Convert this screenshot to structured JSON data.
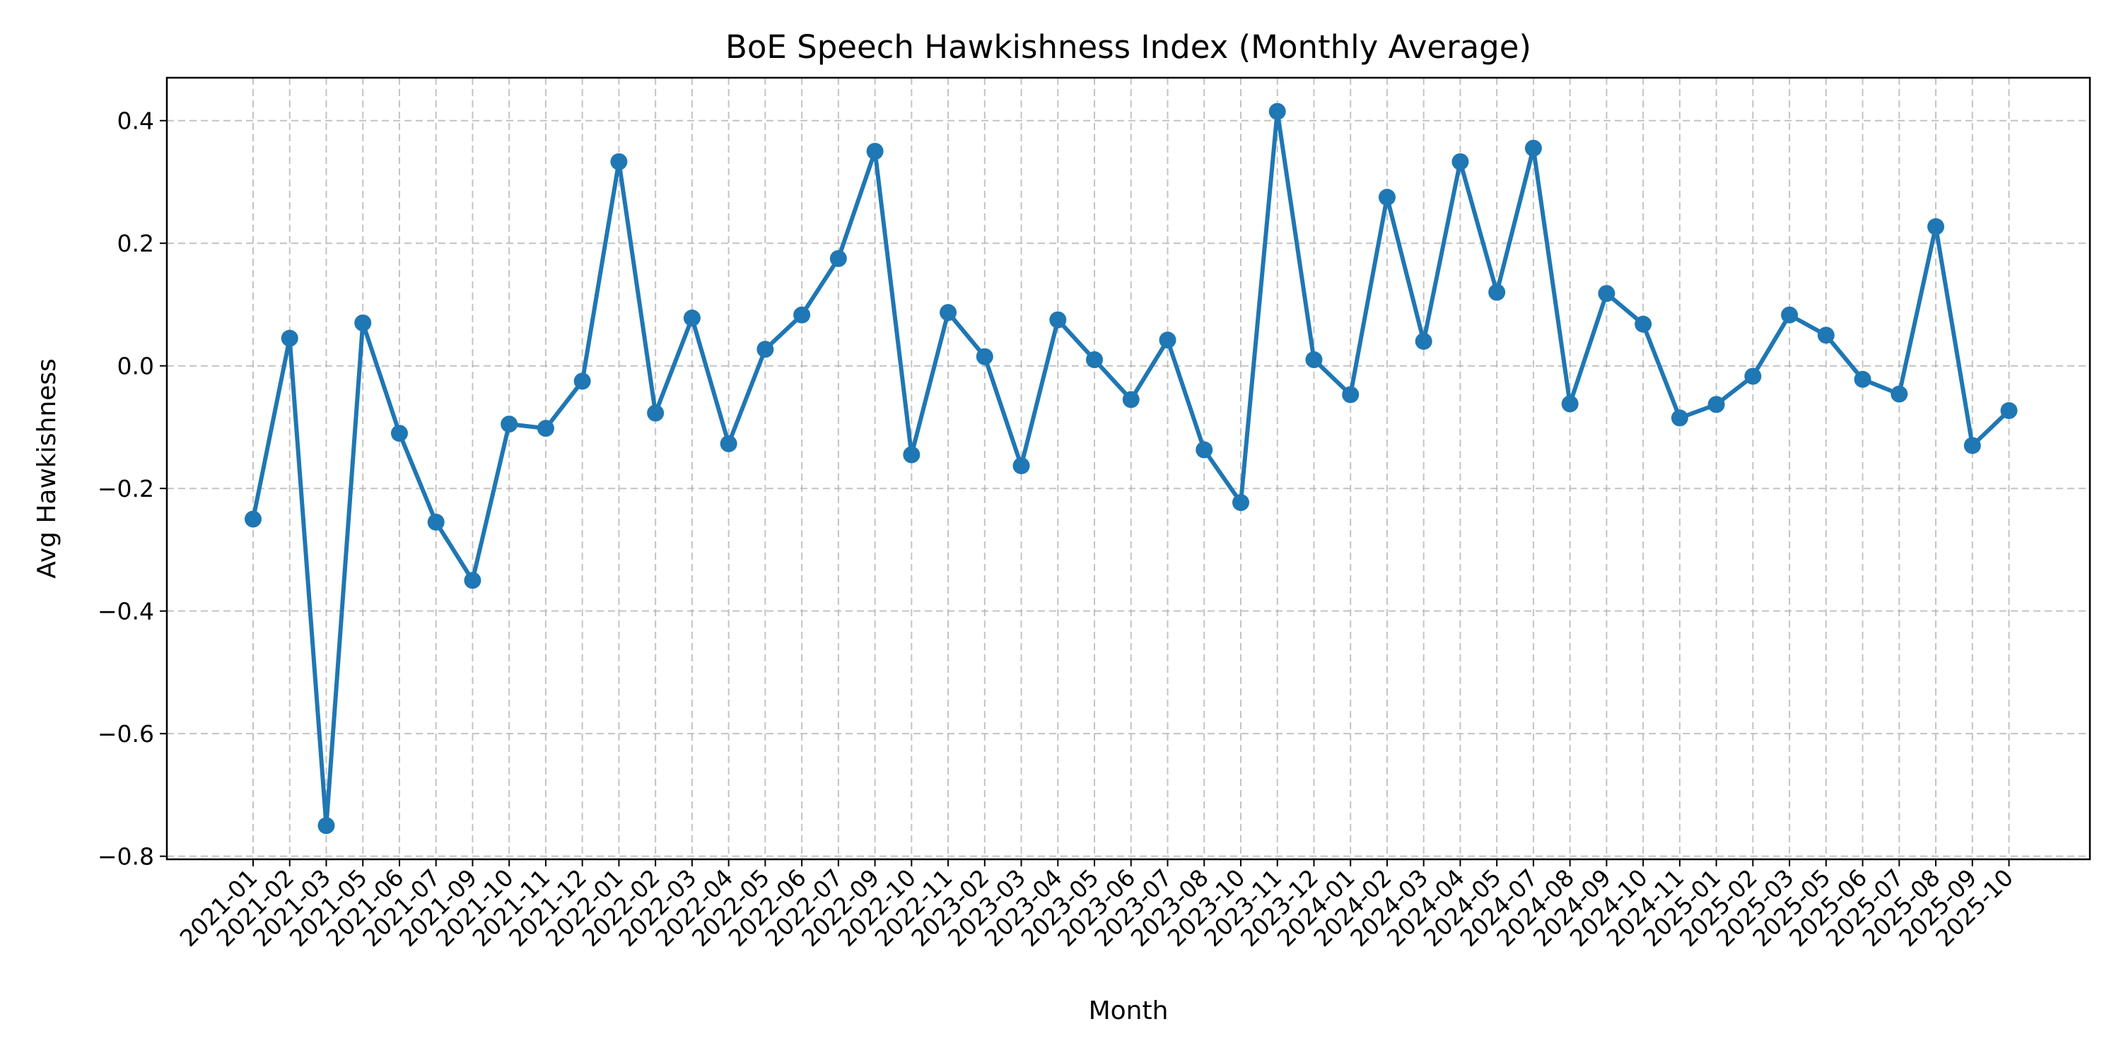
{
  "chart_data": {
    "type": "line",
    "title": "BoE Speech Hawkishness Index (Monthly Average)",
    "xlabel": "Month",
    "ylabel": "Avg Hawkishness",
    "ylim": [
      -0.805,
      0.47
    ],
    "yticks": [
      0.4,
      0.2,
      0.0,
      -0.2,
      -0.4,
      -0.6,
      -0.8
    ],
    "ytick_labels": [
      "0.4",
      "0.2",
      "0.0",
      "−0.2",
      "−0.4",
      "−0.6",
      "−0.8"
    ],
    "grid": true,
    "color": "#1f77b4",
    "x": [
      "2021-01",
      "2021-02",
      "2021-03",
      "2021-05",
      "2021-06",
      "2021-07",
      "2021-09",
      "2021-10",
      "2021-11",
      "2021-12",
      "2022-01",
      "2022-02",
      "2022-03",
      "2022-04",
      "2022-05",
      "2022-06",
      "2022-07",
      "2022-09",
      "2022-10",
      "2022-11",
      "2023-02",
      "2023-03",
      "2023-04",
      "2023-05",
      "2023-06",
      "2023-07",
      "2023-08",
      "2023-10",
      "2023-11",
      "2023-12",
      "2024-01",
      "2024-02",
      "2024-03",
      "2024-04",
      "2024-05",
      "2024-07",
      "2024-08",
      "2024-09",
      "2024-10",
      "2024-11",
      "2025-01",
      "2025-02",
      "2025-03",
      "2025-05",
      "2025-06",
      "2025-07",
      "2025-08",
      "2025-09",
      "2025-10"
    ],
    "series": [
      {
        "values": [
          -0.25,
          0.045,
          -0.75,
          0.07,
          -0.11,
          -0.255,
          -0.35,
          -0.095,
          -0.102,
          -0.025,
          0.333,
          -0.077,
          0.078,
          -0.127,
          0.027,
          0.083,
          0.175,
          0.35,
          -0.145,
          0.087,
          0.015,
          -0.163,
          0.075,
          0.01,
          -0.055,
          0.042,
          -0.137,
          -0.223,
          0.415,
          0.01,
          -0.047,
          0.275,
          0.04,
          0.333,
          0.12,
          0.355,
          -0.062,
          0.118,
          0.068,
          -0.085,
          -0.063,
          -0.017,
          0.083,
          0.05,
          -0.022,
          -0.046,
          0.227,
          -0.13,
          -0.073
        ]
      }
    ]
  }
}
